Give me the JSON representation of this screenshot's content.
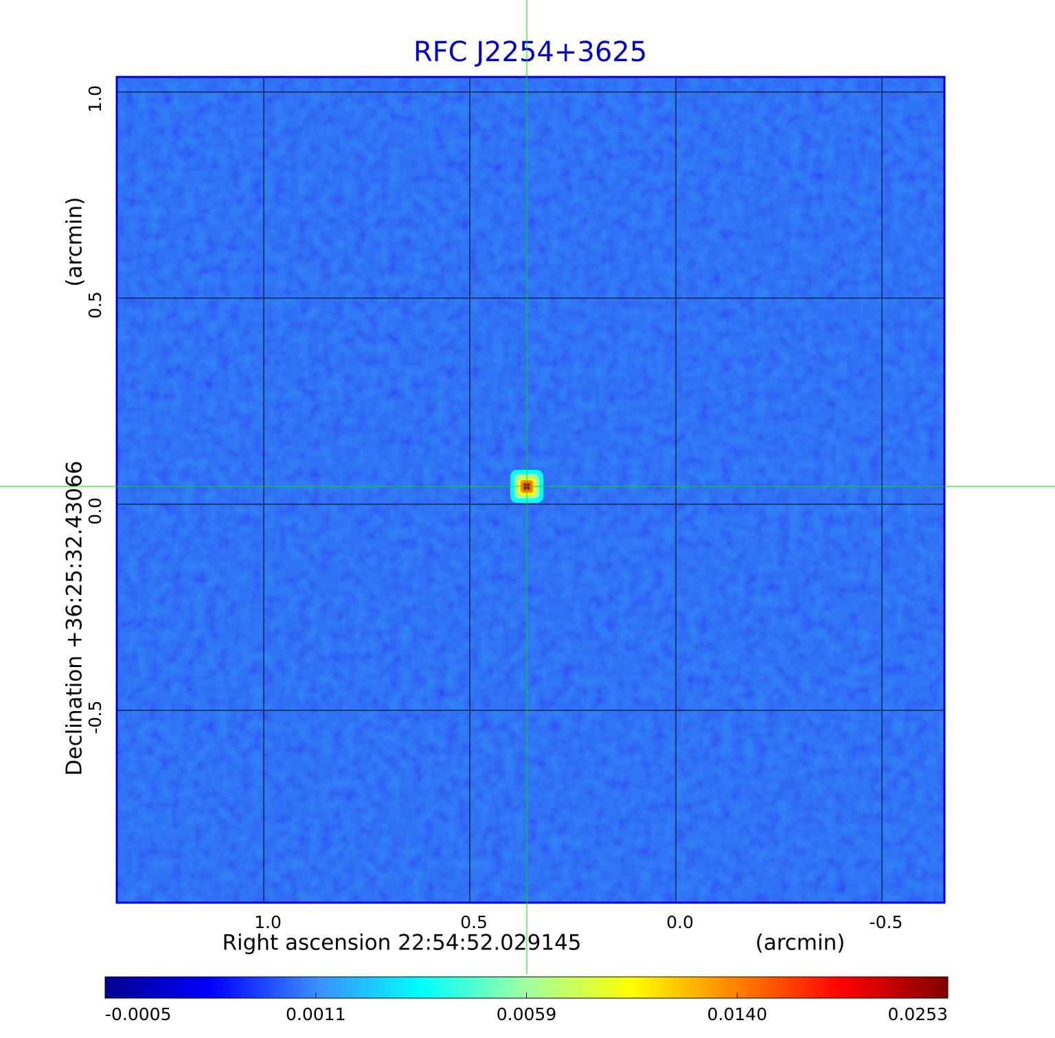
{
  "chart_data": {
    "type": "image",
    "title": "RFC J2254+3625",
    "xlabel": "Right ascension  22:54:52.029145",
    "xunit": "(arcmin)",
    "ylabel": "Declination  +36:25:32.43066",
    "yunit": "(arcmin)",
    "xlim": [
      1.3567,
      -0.6517
    ],
    "xticks": [
      {
        "value": 1,
        "label": "1.0"
      },
      0.5,
      {
        "value": 0,
        "label": "0.0"
      },
      -0.5
    ],
    "ylim": [
      -0.9667,
      1.0367
    ],
    "yticks": [
      {
        "value": 1,
        "label": "1.0"
      },
      0.5,
      {
        "value": 0,
        "label": "0.0"
      },
      -0.5
    ],
    "grid": true,
    "crosshair": {
      "x": 0.3617,
      "y": 0.0433,
      "color": "#00dd00"
    },
    "source": {
      "x": 0.3617,
      "y": 0.0433
    },
    "colorbar": {
      "ticks": [
        -0.0005,
        0.0011,
        0.0059,
        {
          "value": 0.014,
          "label": "0.0140"
        },
        0.0253
      ],
      "colors": [
        "#00008f",
        "#0000ff",
        "#3a8cff",
        "#00ffff",
        "#a0ffa0",
        "#ffff00",
        "#ff8000",
        "#ff0000",
        "#800000"
      ]
    }
  }
}
